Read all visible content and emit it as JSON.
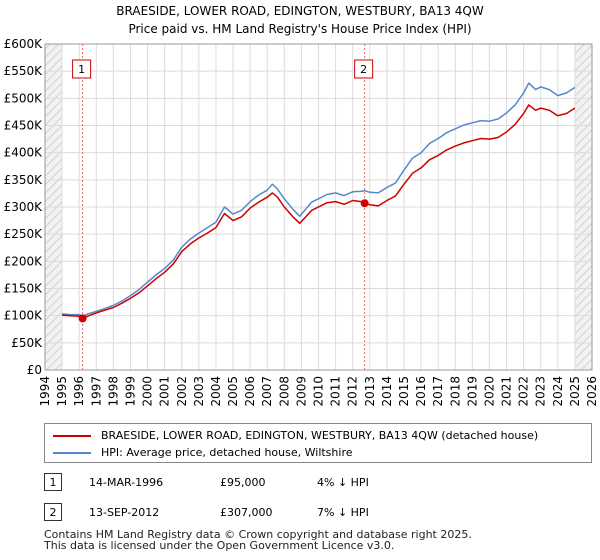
{
  "chart_data": {
    "type": "line",
    "title": "BRAESIDE, LOWER ROAD, EDINGTON, WESTBURY, BA13 4QW",
    "subtitle": "Price paid vs. HM Land Registry's House Price Index (HPI)",
    "xlabel": "",
    "ylabel": "",
    "xlim": [
      1994,
      2026
    ],
    "ylim": [
      0,
      600000
    ],
    "x_ticks": [
      "1994",
      "1995",
      "1996",
      "1997",
      "1998",
      "1999",
      "2000",
      "2001",
      "2002",
      "2003",
      "2004",
      "2005",
      "2006",
      "2007",
      "2008",
      "2009",
      "2010",
      "2011",
      "2012",
      "2013",
      "2014",
      "2015",
      "2016",
      "2017",
      "2018",
      "2019",
      "2020",
      "2021",
      "2022",
      "2023",
      "2024",
      "2025",
      "2026"
    ],
    "y_ticks": [
      {
        "value": 0,
        "label": "£0"
      },
      {
        "value": 50000,
        "label": "£50K"
      },
      {
        "value": 100000,
        "label": "£100K"
      },
      {
        "value": 150000,
        "label": "£150K"
      },
      {
        "value": 200000,
        "label": "£200K"
      },
      {
        "value": 250000,
        "label": "£250K"
      },
      {
        "value": 300000,
        "label": "£300K"
      },
      {
        "value": 350000,
        "label": "£350K"
      },
      {
        "value": 400000,
        "label": "£400K"
      },
      {
        "value": 450000,
        "label": "£450K"
      },
      {
        "value": 500000,
        "label": "£500K"
      },
      {
        "value": 550000,
        "label": "£550K"
      },
      {
        "value": 600000,
        "label": "£600K"
      }
    ],
    "grid": true,
    "hatched_ranges": [
      [
        1994,
        1995
      ],
      [
        2025,
        2026
      ]
    ],
    "series": [
      {
        "name": "BRAESIDE, LOWER ROAD, EDINGTON, WESTBURY, BA13 4QW (detached house)",
        "color": "#cc0000",
        "x": [
          1995.0,
          1995.5,
          1996.0,
          1996.2,
          1996.5,
          1997.0,
          1997.5,
          1998.0,
          1998.5,
          1999.0,
          1999.5,
          2000.0,
          2000.5,
          2001.0,
          2001.5,
          2002.0,
          2002.5,
          2003.0,
          2003.5,
          2004.0,
          2004.5,
          2005.0,
          2005.5,
          2006.0,
          2006.5,
          2007.0,
          2007.3,
          2007.6,
          2008.0,
          2008.5,
          2008.9,
          2009.2,
          2009.6,
          2010.0,
          2010.5,
          2011.0,
          2011.5,
          2012.0,
          2012.5,
          2012.7,
          2013.0,
          2013.5,
          2014.0,
          2014.5,
          2015.0,
          2015.5,
          2016.0,
          2016.5,
          2017.0,
          2017.5,
          2018.0,
          2018.5,
          2019.0,
          2019.5,
          2020.0,
          2020.5,
          2021.0,
          2021.5,
          2022.0,
          2022.3,
          2022.7,
          2023.0,
          2023.5,
          2024.0,
          2024.5,
          2024.8,
          2025.0
        ],
        "values": [
          101000,
          100000,
          99000,
          95000,
          99000,
          105000,
          110000,
          115000,
          123000,
          132000,
          142000,
          155000,
          168000,
          180000,
          195000,
          218000,
          232000,
          243000,
          252000,
          262000,
          288000,
          275000,
          282000,
          298000,
          309000,
          318000,
          326000,
          318000,
          300000,
          282000,
          270000,
          280000,
          294000,
          300000,
          308000,
          310000,
          305000,
          312000,
          310000,
          307000,
          304000,
          302000,
          312000,
          320000,
          342000,
          362000,
          372000,
          387000,
          395000,
          405000,
          412000,
          418000,
          422000,
          426000,
          425000,
          428000,
          438000,
          452000,
          472000,
          488000,
          478000,
          482000,
          478000,
          468000,
          472000,
          478000,
          482000
        ]
      },
      {
        "name": "HPI: Average price, detached house, Wiltshire",
        "color": "#5588cc",
        "x": [
          1995.0,
          1995.5,
          1996.0,
          1996.2,
          1996.5,
          1997.0,
          1997.5,
          1998.0,
          1998.5,
          1999.0,
          1999.5,
          2000.0,
          2000.5,
          2001.0,
          2001.5,
          2002.0,
          2002.5,
          2003.0,
          2003.5,
          2004.0,
          2004.5,
          2005.0,
          2005.5,
          2006.0,
          2006.5,
          2007.0,
          2007.3,
          2007.6,
          2008.0,
          2008.5,
          2008.9,
          2009.2,
          2009.6,
          2010.0,
          2010.5,
          2011.0,
          2011.5,
          2012.0,
          2012.5,
          2012.7,
          2013.0,
          2013.5,
          2014.0,
          2014.5,
          2015.0,
          2015.5,
          2016.0,
          2016.5,
          2017.0,
          2017.5,
          2018.0,
          2018.5,
          2019.0,
          2019.5,
          2020.0,
          2020.5,
          2021.0,
          2021.5,
          2022.0,
          2022.3,
          2022.7,
          2023.0,
          2023.5,
          2024.0,
          2024.5,
          2024.8,
          2025.0
        ],
        "values": [
          103000,
          102000,
          102000,
          99000,
          103000,
          108000,
          113000,
          119000,
          127000,
          137000,
          148000,
          162000,
          175000,
          187000,
          202000,
          226000,
          241000,
          252000,
          262000,
          272000,
          300000,
          287000,
          294000,
          310000,
          322000,
          331000,
          342000,
          333000,
          315000,
          296000,
          283000,
          294000,
          309000,
          315000,
          323000,
          326000,
          321000,
          328000,
          329000,
          330000,
          327000,
          326000,
          336000,
          344000,
          368000,
          390000,
          400000,
          417000,
          426000,
          437000,
          444000,
          451000,
          455000,
          459000,
          458000,
          462000,
          473000,
          488000,
          510000,
          528000,
          516000,
          521000,
          516000,
          505000,
          510000,
          516000,
          520000
        ]
      }
    ],
    "annotations": [
      {
        "label": "1",
        "x": 1996.2,
        "y": 95000
      },
      {
        "label": "2",
        "x": 2012.7,
        "y": 307000
      }
    ]
  },
  "legend": {
    "property": "BRAESIDE, LOWER ROAD, EDINGTON, WESTBURY, BA13 4QW (detached house)",
    "hpi": "HPI: Average price, detached house, Wiltshire"
  },
  "sales": [
    {
      "num": "1",
      "date": "14-MAR-1996",
      "price": "£95,000",
      "hpi": "4% ↓ HPI"
    },
    {
      "num": "2",
      "date": "13-SEP-2012",
      "price": "£307,000",
      "hpi": "7% ↓ HPI"
    }
  ],
  "footer": {
    "line1": "Contains HM Land Registry data © Crown copyright and database right 2025.",
    "line2": "This data is licensed under the Open Government Licence v3.0."
  },
  "colors": {
    "property": "#cc0000",
    "hpi": "#5588cc",
    "marker_line": "#ee6666"
  }
}
